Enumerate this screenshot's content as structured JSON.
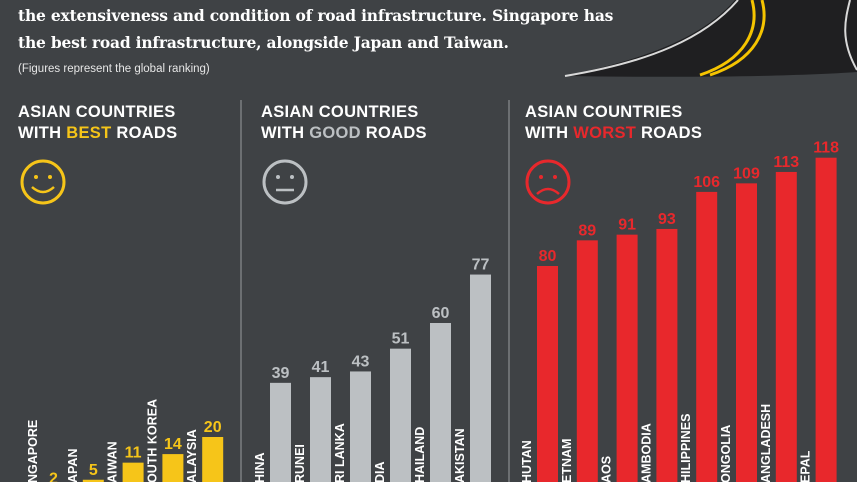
{
  "intro": {
    "line1": "the extensiveness and condition of road infrastructure. Singapore has",
    "line2": "the best road infrastructure, alongside Japan and Taiwan.",
    "note": "(Figures represent the global ranking)"
  },
  "sections": [
    {
      "line1": "ASIAN COUNTRIES",
      "pre": "WITH ",
      "highlight": "BEST",
      "post": " ROADS",
      "color": "#f6c519",
      "icon": "smiley-face-icon"
    },
    {
      "line1": "ASIAN COUNTRIES",
      "pre": "WITH ",
      "highlight": "GOOD",
      "post": " ROADS",
      "color": "#bcc0c3",
      "icon": "neutral-face-icon"
    },
    {
      "line1": "ASIAN COUNTRIES",
      "pre": "WITH ",
      "highlight": "WORST",
      "post": " ROADS",
      "color": "#e8282c",
      "icon": "sad-face-icon"
    }
  ],
  "chart_data": {
    "type": "bar",
    "title": "",
    "ylabel": "global ranking",
    "groups": [
      {
        "name": "ASIAN COUNTRIES WITH BEST ROADS",
        "color": "#f6c519",
        "categories": [
          "NGAPORE",
          "APAN",
          "AIWAN",
          "OUTH KOREA",
          "ALAYSIA"
        ],
        "values": [
          2,
          5,
          11,
          14,
          20
        ]
      },
      {
        "name": "ASIAN COUNTRIES WITH GOOD ROADS",
        "color": "#bcc0c3",
        "categories": [
          "HINA",
          "RUNEI",
          "RI LANKA",
          "DIA",
          "HAILAND",
          "AKISTAN"
        ],
        "values": [
          39,
          41,
          43,
          51,
          60,
          77
        ]
      },
      {
        "name": "ASIAN COUNTRIES WITH WORST ROADS",
        "color": "#e8282c",
        "categories": [
          "HUTAN",
          "ETNAM",
          "AOS",
          "AMBODIA",
          "HILIPPINES",
          "ONGOLIA",
          "ANGLADESH",
          "EPAL"
        ],
        "values": [
          80,
          89,
          91,
          93,
          106,
          109,
          113,
          118
        ]
      }
    ]
  }
}
